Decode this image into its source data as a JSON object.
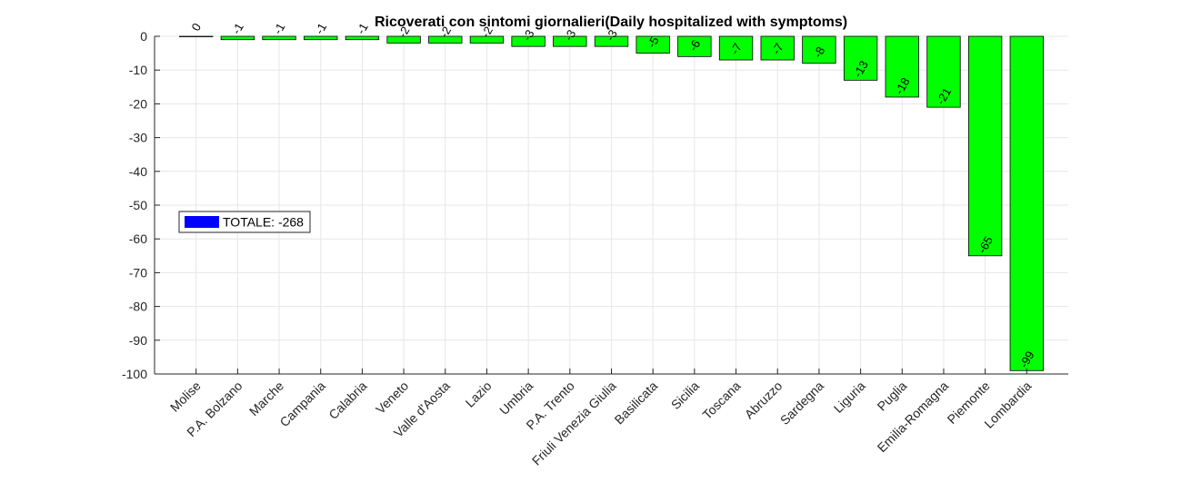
{
  "chart_data": {
    "type": "bar",
    "title": "Ricoverati con sintomi giornalieri(Daily hospitalized with symptoms)",
    "xlabel": "",
    "ylabel": "",
    "categories": [
      "Molise",
      "P.A. Bolzano",
      "Marche",
      "Campania",
      "Calabria",
      "Veneto",
      "Valle d'Aosta",
      "Lazio",
      "Umbria",
      "P.A. Trento",
      "Friuli Venezia Giulia",
      "Basilicata",
      "Sicilia",
      "Toscana",
      "Abruzzo",
      "Sardegna",
      "Liguria",
      "Puglia",
      "Emilia-Romagna",
      "Piemonte",
      "Lombardia"
    ],
    "values": [
      0,
      -1,
      -1,
      -1,
      -1,
      -2,
      -2,
      -2,
      -3,
      -3,
      -3,
      -5,
      -6,
      -7,
      -7,
      -8,
      -13,
      -18,
      -21,
      -65,
      -99
    ],
    "ylim": [
      -100,
      0
    ],
    "yticks": [
      0,
      -10,
      -20,
      -30,
      -40,
      -50,
      -60,
      -70,
      -80,
      -90,
      -100
    ],
    "grid": true,
    "bar_color": "#00ff00",
    "legend": {
      "placement": "middle-left",
      "label": "TOTALE: -268",
      "color": "#0000ff"
    }
  }
}
